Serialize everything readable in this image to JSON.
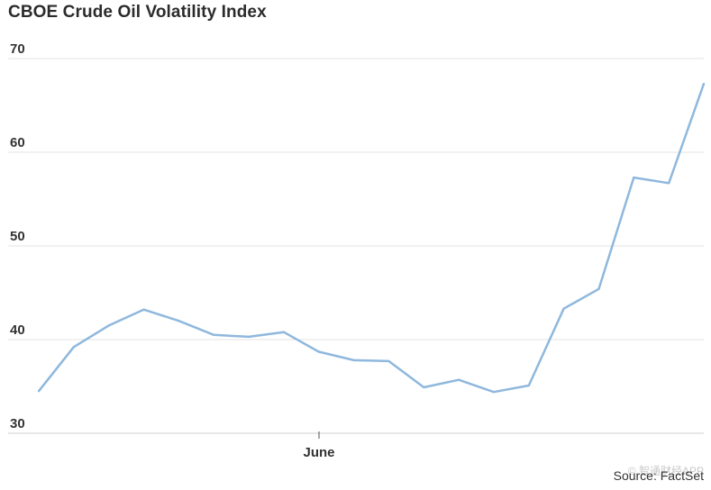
{
  "colors": {
    "line": "#8fb8dd",
    "grid": "#e3e3e3",
    "axis": "#555555",
    "text": "#2b2b2b"
  },
  "chart_data": {
    "type": "line",
    "title": "CBOE Crude Oil Volatility Index",
    "source": "Source: FactSet",
    "watermark": "© 智通财经APP",
    "ylim": [
      30,
      70
    ],
    "yticks": [
      "70",
      "60",
      "50",
      "40",
      "30"
    ],
    "x_label_month": "June",
    "grid": true,
    "series": [
      {
        "values": [
          34.5,
          39.2,
          41.5,
          43.2,
          42.0,
          40.5,
          40.3,
          40.8,
          38.7,
          37.8,
          37.7,
          34.9,
          35.7,
          34.4,
          35.1,
          43.3,
          45.4,
          57.3,
          56.7,
          67.3
        ]
      }
    ]
  }
}
